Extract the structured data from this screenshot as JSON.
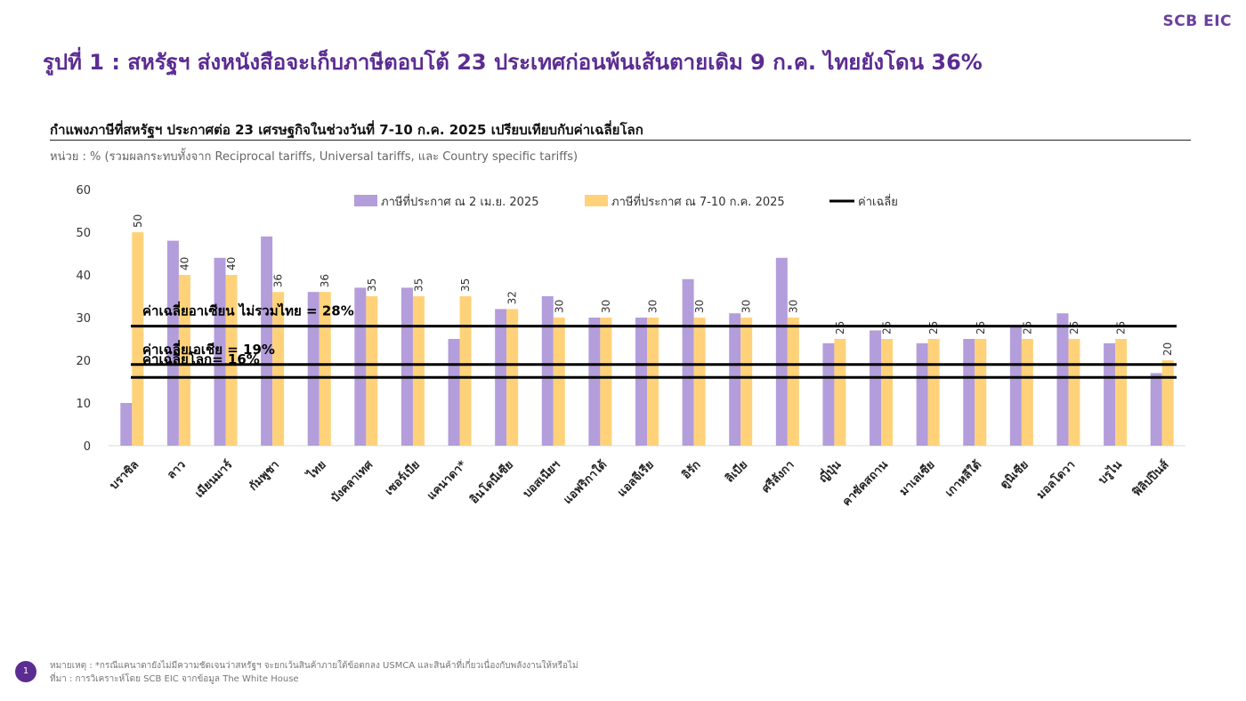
{
  "header": {
    "logo_text": "SCB EIC",
    "title": "รูปที่ 1 : สหรัฐฯ ส่งหนังสือจะเก็บภาษีตอบโต้ 23 ประเทศก่อนพ้นเส้นตายเดิม 9 ก.ค. ไทยยังโดน 36%"
  },
  "subtitle": "กำแพงภาษีที่สหรัฐฯ ประกาศต่อ 23 เศรษฐกิจในช่วงวันที่ 7-10 ก.ค. 2025 เปรียบเทียบกับค่าเฉลี่ยโลก",
  "unit_note": "หน่วย : % (รวมผลกระทบทั้งจาก Reciprocal tariffs, Universal tariffs, และ Country specific tariffs)",
  "footer": {
    "page_number": "1",
    "note": "หมายเหตุ : *กรณีแคนาดายังไม่มีความชัดเจนว่าสหรัฐฯ จะยกเว้นสินค้าภายใต้ข้อตกลง USMCA และสินค้าที่เกี่ยวเนื่องกับพลังงานให้หรือไม่",
    "source": "ที่มา : การวิเคราะห์โดย SCB EIC จากข้อมูล The White House"
  },
  "colors": {
    "april": "#b39ddb",
    "july": "#ffd27a",
    "avg_line": "#000000",
    "title": "#5b2c91"
  },
  "chart_data": {
    "type": "bar",
    "title": "กำแพงภาษีที่สหรัฐฯ ประกาศต่อ 23 เศรษฐกิจในช่วงวันที่ 7-10 ก.ค. 2025 เปรียบเทียบกับค่าเฉลี่ยโลก",
    "ylabel": "%",
    "ylim": [
      0,
      60
    ],
    "yticks": [
      0,
      10,
      20,
      30,
      40,
      50,
      60
    ],
    "grid": false,
    "legend_position": "top",
    "categories": [
      "บราซิล",
      "ลาว",
      "เมียนมาร์",
      "กัมพูชา",
      "ไทย",
      "บังคลาเทศ",
      "เซอร์เบีย",
      "แคนาดา*",
      "อินโดนีเซีย",
      "บอสเนียฯ",
      "แอฟริกาใต้",
      "แอลจีเรีย",
      "อิรัก",
      "ลิเบีย",
      "ศรีลังกา",
      "ญี่ปุ่น",
      "คาซัคสถาน",
      "มาเลเซีย",
      "เกาหลีใต้",
      "ตูนิเซีย",
      "มอลโดวา",
      "บรูไน",
      "ฟิลิปปินส์"
    ],
    "series": [
      {
        "name": "ภาษีที่ประกาศ ณ 2 เม.ย. 2025",
        "values": [
          10,
          48,
          44,
          49,
          36,
          37,
          37,
          25,
          32,
          35,
          30,
          30,
          39,
          31,
          44,
          24,
          27,
          24,
          25,
          28,
          31,
          24,
          17
        ]
      },
      {
        "name": "ภาษีที่ประกาศ ณ 7-10 ก.ค. 2025",
        "values": [
          50,
          40,
          40,
          36,
          36,
          35,
          35,
          35,
          32,
          30,
          30,
          30,
          30,
          30,
          30,
          25,
          25,
          25,
          25,
          25,
          25,
          25,
          20
        ]
      }
    ],
    "data_labels_series": 1,
    "average_legend": "ค่าเฉลี่ย",
    "averages": [
      {
        "label": "ค่าเฉลี่ยอาเซียน ไม่รวมไทย = 28%",
        "value": 28
      },
      {
        "label": "ค่าเฉลี่ยเอเชีย = 19%",
        "value": 19
      },
      {
        "label": "ค่าเฉลี่ยโลก= 16%",
        "value": 16
      }
    ]
  }
}
